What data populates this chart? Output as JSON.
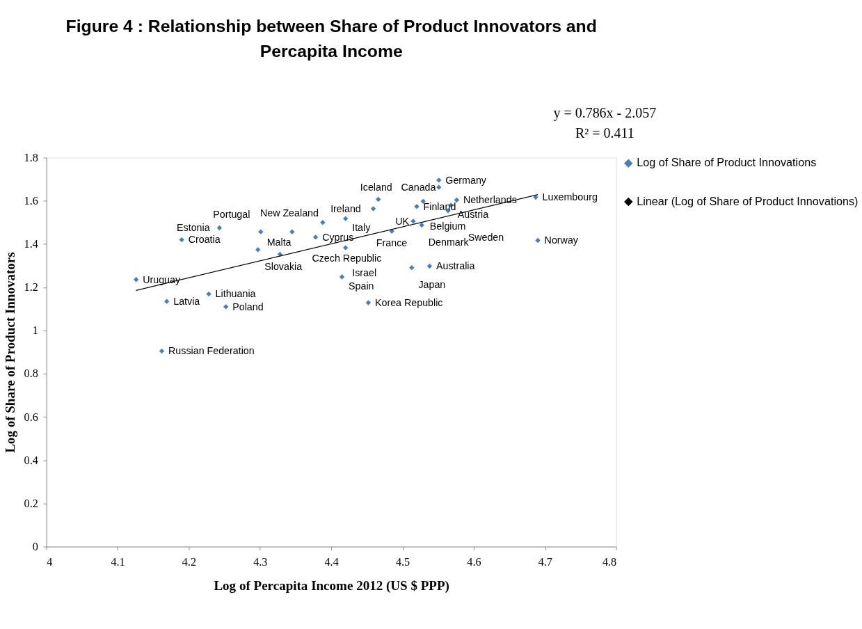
{
  "chart_data": {
    "type": "scatter",
    "title": "Figure 4 : Relationship between Share of Product Innovators and Percapita Income",
    "xlabel": "Log of Percapita Income 2012 (US $ PPP)",
    "ylabel": "Log of Share of Product Innovators",
    "xlim": [
      4,
      4.8
    ],
    "xticks": [
      4,
      4.1,
      4.2,
      4.3,
      4.4,
      4.5,
      4.6,
      4.7,
      4.8
    ],
    "ylim": [
      0,
      1.8
    ],
    "yticks": [
      0,
      0.2,
      0.4,
      0.6,
      0.8,
      1,
      1.2,
      1.4,
      1.6,
      1.8
    ],
    "grid": false,
    "legend": "right",
    "marker": "diamond",
    "series": [
      {
        "name": "Log of Share of Product Innovations",
        "color": "#4a7ebb",
        "x": [
          4.126,
          4.19,
          4.243,
          4.169,
          4.228,
          4.252,
          4.162,
          4.297,
          4.301,
          4.328,
          4.345,
          4.378,
          4.388,
          4.42,
          4.42,
          4.415,
          4.452,
          4.466,
          4.459,
          4.485,
          4.513,
          4.538,
          4.527,
          4.515,
          4.529,
          4.52,
          4.576,
          4.568,
          4.564,
          4.551,
          4.551,
          4.687,
          4.69
        ],
        "values": [
          1.236,
          1.42,
          1.475,
          1.135,
          1.169,
          1.11,
          0.905,
          1.374,
          1.457,
          1.353,
          1.457,
          1.432,
          1.5,
          1.518,
          1.383,
          1.248,
          1.129,
          1.607,
          1.564,
          1.46,
          1.291,
          1.298,
          1.488,
          1.506,
          1.598,
          1.574,
          1.604,
          1.58,
          1.555,
          1.696,
          1.663,
          1.617,
          1.417
        ]
      },
      {
        "name": "Linear (Log of Share of Product Innovations)",
        "color": "#000000",
        "type": "line",
        "marker": "none",
        "line_style": "solid",
        "x": [
          4.126,
          4.69
        ],
        "values": [
          1.186,
          1.629
        ]
      }
    ],
    "annotations": [
      "y = 0.786x - 2.057",
      "R² = 0.411",
      {
        "text": "Uruguay",
        "x": 4.126,
        "y": 1.236
      },
      {
        "text": "Croatia",
        "x": 4.19,
        "y": 1.42
      },
      {
        "text": "Estonia",
        "x": 4.243,
        "y": 1.475
      },
      {
        "text": "Latvia",
        "x": 4.169,
        "y": 1.135
      },
      {
        "text": "Lithuania",
        "x": 4.228,
        "y": 1.169
      },
      {
        "text": "Poland",
        "x": 4.252,
        "y": 1.11
      },
      {
        "text": "Russian Federation",
        "x": 4.162,
        "y": 0.905
      },
      {
        "text": "Slovakia",
        "x": 4.297,
        "y": 1.374
      },
      {
        "text": "Portugal",
        "x": 4.301,
        "y": 1.457
      },
      {
        "text": "Malta",
        "x": 4.328,
        "y": 1.353
      },
      {
        "text": "Czech Republic",
        "x": 4.345,
        "y": 1.457
      },
      {
        "text": "Cyprus",
        "x": 4.378,
        "y": 1.432
      },
      {
        "text": "New Zealand",
        "x": 4.388,
        "y": 1.5
      },
      {
        "text": "Italy",
        "x": 4.42,
        "y": 1.518
      },
      {
        "text": "Israel",
        "x": 4.42,
        "y": 1.383
      },
      {
        "text": "Spain",
        "x": 4.415,
        "y": 1.248
      },
      {
        "text": "Korea Republic",
        "x": 4.452,
        "y": 1.129
      },
      {
        "text": "Iceland",
        "x": 4.466,
        "y": 1.607
      },
      {
        "text": "Ireland",
        "x": 4.459,
        "y": 1.564
      },
      {
        "text": "France",
        "x": 4.485,
        "y": 1.46
      },
      {
        "text": "Japan",
        "x": 4.513,
        "y": 1.291
      },
      {
        "text": "Australia",
        "x": 4.538,
        "y": 1.298
      },
      {
        "text": "Denmark",
        "x": 4.527,
        "y": 1.488
      },
      {
        "text": "UK",
        "x": 4.515,
        "y": 1.506
      },
      {
        "text": "Belgium",
        "x": 4.529,
        "y": 1.598
      },
      {
        "text": "Finland",
        "x": 4.52,
        "y": 1.574
      },
      {
        "text": "Netherlands",
        "x": 4.576,
        "y": 1.604
      },
      {
        "text": "Austria",
        "x": 4.568,
        "y": 1.58
      },
      {
        "text": "Sweden",
        "x": 4.564,
        "y": 1.555
      },
      {
        "text": "Germany",
        "x": 4.551,
        "y": 1.696
      },
      {
        "text": "Canada",
        "x": 4.551,
        "y": 1.663
      },
      {
        "text": "Luxembourg",
        "x": 4.687,
        "y": 1.617
      },
      {
        "text": "Norway",
        "x": 4.69,
        "y": 1.417
      }
    ]
  }
}
